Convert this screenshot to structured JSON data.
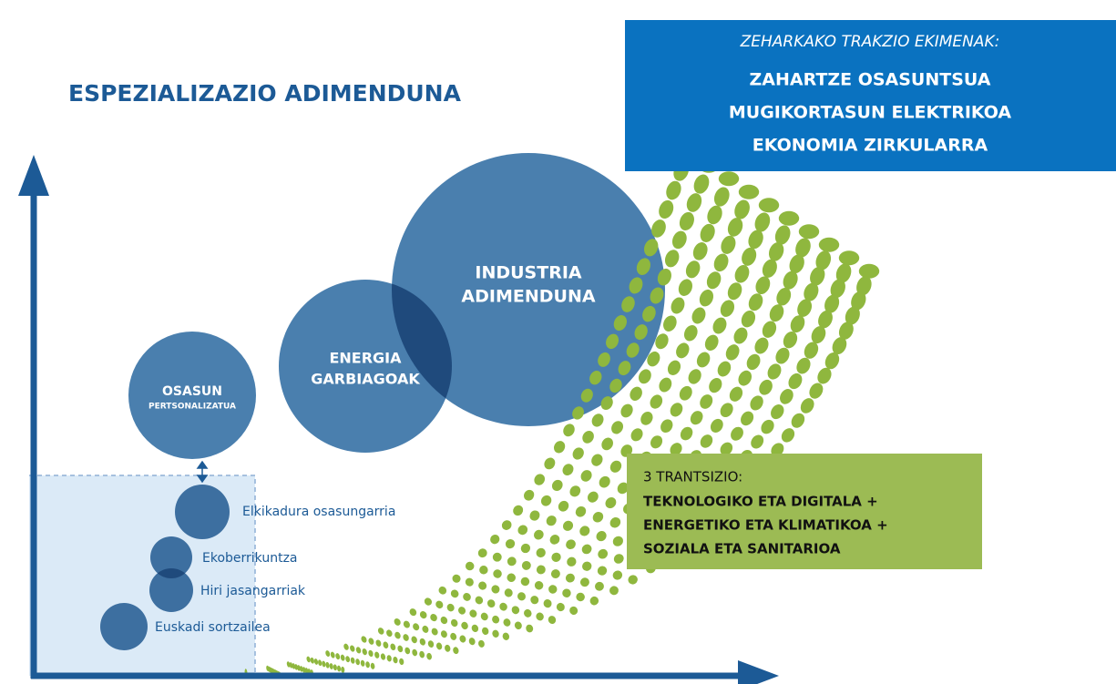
{
  "title": "ESPEZIALIZAZIO ADIMENDUNA",
  "cross_box": {
    "heading": "ZEHARKAKO TRAKZIO EKIMENAK:",
    "items": [
      "ZAHARTZE OSASUNTSUA",
      "MUGIKORTASUN ELEKTRIKOA",
      "EKONOMIA ZIRKULARRA"
    ]
  },
  "big_circles": [
    {
      "lines": [
        "INDUSTRIA",
        "ADIMENDUNA"
      ]
    },
    {
      "lines": [
        "ENERGIA",
        "GARBIAGOAK"
      ]
    },
    {
      "lines": [
        "OSASUN",
        "PERTSONALIZATUA"
      ]
    }
  ],
  "small_circles": [
    {
      "label": "Elkikadura osasungarria"
    },
    {
      "label": "Ekoberrikuntza"
    },
    {
      "label": "Hiri jasangarriak"
    },
    {
      "label": "Euskadi sortzailea"
    }
  ],
  "transitions_box": {
    "heading": "3 TRANTSIZIO:",
    "items": [
      "TEKNOLOGIKO ETA DIGITALA +",
      "ENERGETIKO ETA KLIMATIKOA +",
      "SOZIALA ETA SANITARIOA"
    ]
  }
}
